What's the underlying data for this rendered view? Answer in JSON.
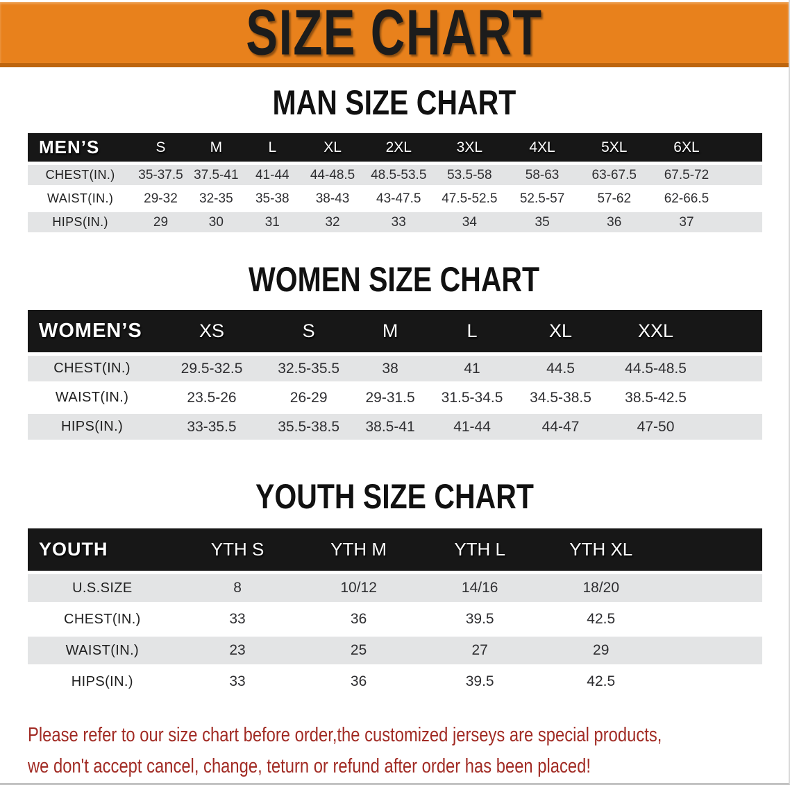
{
  "banner": {
    "title": "SIZE CHART"
  },
  "sections": [
    {
      "id": "men",
      "title": "MAN SIZE CHART",
      "header_label": "MEN’S",
      "columns": [
        "S",
        "M",
        "L",
        "XL",
        "2XL",
        "3XL",
        "4XL",
        "5XL",
        "6XL"
      ],
      "rows": [
        {
          "label": "CHEST(IN.)",
          "values": [
            "35-37.5",
            "37.5-41",
            "41-44",
            "44-48.5",
            "48.5-53.5",
            "53.5-58",
            "58-63",
            "63-67.5",
            "67.5-72"
          ]
        },
        {
          "label": "WAIST(IN.)",
          "values": [
            "29-32",
            "32-35",
            "35-38",
            "38-43",
            "43-47.5",
            "47.5-52.5",
            "52.5-57",
            "57-62",
            "62-66.5"
          ]
        },
        {
          "label": "HIPS(IN.)",
          "values": [
            "29",
            "30",
            "31",
            "32",
            "33",
            "34",
            "35",
            "36",
            "37"
          ]
        }
      ]
    },
    {
      "id": "women",
      "title": "WOMEN SIZE CHART",
      "header_label": "WOMEN’S",
      "columns": [
        "XS",
        "S",
        "M",
        "L",
        "XL",
        "XXL"
      ],
      "rows": [
        {
          "label": "CHEST(IN.)",
          "values": [
            "29.5-32.5",
            "32.5-35.5",
            "38",
            "41",
            "44.5",
            "44.5-48.5"
          ]
        },
        {
          "label": "WAIST(IN.)",
          "values": [
            "23.5-26",
            "26-29",
            "29-31.5",
            "31.5-34.5",
            "34.5-38.5",
            "38.5-42.5"
          ]
        },
        {
          "label": "HIPS(IN.)",
          "values": [
            "33-35.5",
            "35.5-38.5",
            "38.5-41",
            "41-44",
            "44-47",
            "47-50"
          ]
        }
      ]
    },
    {
      "id": "youth",
      "title": "YOUTH SIZE CHART",
      "header_label": "YOUTH",
      "columns": [
        "YTH S",
        "YTH M",
        "YTH L",
        "YTH XL"
      ],
      "rows": [
        {
          "label": "U.S.SIZE",
          "values": [
            "8",
            "10/12",
            "14/16",
            "18/20"
          ]
        },
        {
          "label": "CHEST(IN.)",
          "values": [
            "33",
            "36",
            "39.5",
            "42.5"
          ]
        },
        {
          "label": "WAIST(IN.)",
          "values": [
            "23",
            "25",
            "27",
            "29"
          ]
        },
        {
          "label": "HIPS(IN.)",
          "values": [
            "33",
            "36",
            "39.5",
            "42.5"
          ]
        }
      ]
    }
  ],
  "footer": {
    "line1": "Please refer to our size chart before order,the customized jerseys are special products,",
    "line2": "we don't accept cancel, change, teturn or refund after order has been placed!"
  },
  "colors": {
    "banner_bg": "#E8811C",
    "banner_border": "#BD650E",
    "band_bg": "#171717",
    "band_text": "#FFFFFF",
    "row_alt_bg": "#E3E4E5",
    "title_text": "#111111",
    "notice_text": "#A12B24"
  }
}
